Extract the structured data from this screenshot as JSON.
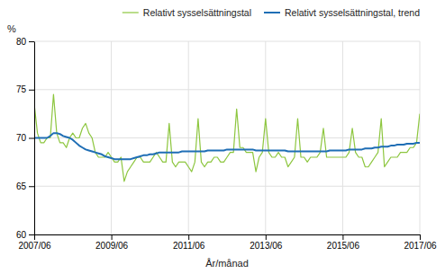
{
  "chart_data": {
    "type": "line",
    "xlabel": "År/månad",
    "ylabel": "%",
    "categories": [
      "2007/06",
      null,
      null,
      null,
      null,
      null,
      null,
      null,
      null,
      null,
      null,
      null,
      null,
      null,
      null,
      null,
      null,
      null,
      null,
      null,
      null,
      null,
      null,
      null,
      "2009/06",
      null,
      null,
      null,
      null,
      null,
      null,
      null,
      null,
      null,
      null,
      null,
      null,
      null,
      null,
      null,
      null,
      null,
      null,
      null,
      null,
      null,
      null,
      null,
      "2011/06",
      null,
      null,
      null,
      null,
      null,
      null,
      null,
      null,
      null,
      null,
      null,
      null,
      null,
      null,
      null,
      null,
      null,
      null,
      null,
      null,
      null,
      null,
      null,
      "2013/06",
      null,
      null,
      null,
      null,
      null,
      null,
      null,
      null,
      null,
      null,
      null,
      null,
      null,
      null,
      null,
      null,
      null,
      null,
      null,
      null,
      null,
      null,
      null,
      "2015/06",
      null,
      null,
      null,
      null,
      null,
      null,
      null,
      null,
      null,
      null,
      null,
      null,
      null,
      null,
      null,
      null,
      null,
      null,
      null,
      null,
      null,
      null,
      null,
      "2017/06"
    ],
    "series": [
      {
        "name": "Relativt sysselsättningstal",
        "color": "#8dc63f",
        "values": [
          73.5,
          70.5,
          69.5,
          69.5,
          70.0,
          70.0,
          74.5,
          70.5,
          69.5,
          69.5,
          69.0,
          70.0,
          70.5,
          70.0,
          70.0,
          71.0,
          71.5,
          70.5,
          70.0,
          68.5,
          68.0,
          68.0,
          68.0,
          68.5,
          68.0,
          67.5,
          67.5,
          68.0,
          65.5,
          66.5,
          67.0,
          67.5,
          68.0,
          68.0,
          67.5,
          67.5,
          67.5,
          68.0,
          68.5,
          68.0,
          67.5,
          67.5,
          71.5,
          67.5,
          67.0,
          67.5,
          67.5,
          67.5,
          67.0,
          66.5,
          67.5,
          72.0,
          67.5,
          67.0,
          67.5,
          67.5,
          68.0,
          68.0,
          67.5,
          67.5,
          68.0,
          68.5,
          68.5,
          73.0,
          69.0,
          69.0,
          68.5,
          68.5,
          68.5,
          66.5,
          68.0,
          68.5,
          72.0,
          68.5,
          68.0,
          68.0,
          68.5,
          68.0,
          68.0,
          67.0,
          67.5,
          68.0,
          72.0,
          68.0,
          68.0,
          67.5,
          68.0,
          68.0,
          68.0,
          68.5,
          71.0,
          68.0,
          68.0,
          68.0,
          68.0,
          68.0,
          68.0,
          68.0,
          68.5,
          71.0,
          68.5,
          68.0,
          68.0,
          67.0,
          67.0,
          67.5,
          68.0,
          68.5,
          72.0,
          67.0,
          67.5,
          68.0,
          68.0,
          68.0,
          68.5,
          68.5,
          68.5,
          69.0,
          69.0,
          69.5,
          72.5
        ]
      },
      {
        "name": "Relativt sysselsättningstal, trend",
        "color": "#1f6eb5",
        "values": [
          70.0,
          70.0,
          70.0,
          70.0,
          70.0,
          70.2,
          70.5,
          70.5,
          70.4,
          70.2,
          70.1,
          70.0,
          69.8,
          69.5,
          69.2,
          69.0,
          68.8,
          68.7,
          68.6,
          68.5,
          68.4,
          68.3,
          68.1,
          68.0,
          67.9,
          67.8,
          67.8,
          67.8,
          67.8,
          67.8,
          67.8,
          67.9,
          68.0,
          68.1,
          68.2,
          68.2,
          68.3,
          68.3,
          68.4,
          68.5,
          68.5,
          68.5,
          68.5,
          68.5,
          68.5,
          68.5,
          68.6,
          68.6,
          68.6,
          68.6,
          68.6,
          68.6,
          68.6,
          68.6,
          68.7,
          68.7,
          68.7,
          68.7,
          68.7,
          68.7,
          68.8,
          68.8,
          68.8,
          68.8,
          68.8,
          68.8,
          68.8,
          68.8,
          68.8,
          68.7,
          68.7,
          68.7,
          68.7,
          68.7,
          68.7,
          68.7,
          68.7,
          68.7,
          68.7,
          68.6,
          68.6,
          68.6,
          68.6,
          68.6,
          68.6,
          68.6,
          68.6,
          68.6,
          68.6,
          68.6,
          68.6,
          68.6,
          68.7,
          68.7,
          68.7,
          68.7,
          68.7,
          68.7,
          68.8,
          68.8,
          68.8,
          68.8,
          68.8,
          68.9,
          68.9,
          68.9,
          69.0,
          69.0,
          69.1,
          69.1,
          69.1,
          69.2,
          69.2,
          69.3,
          69.3,
          69.3,
          69.4,
          69.4,
          69.4,
          69.5,
          69.5
        ]
      }
    ],
    "ylim": [
      60,
      80
    ],
    "yticks": [
      60,
      65,
      70,
      75,
      80
    ],
    "grid": true,
    "legend": "top-right"
  }
}
